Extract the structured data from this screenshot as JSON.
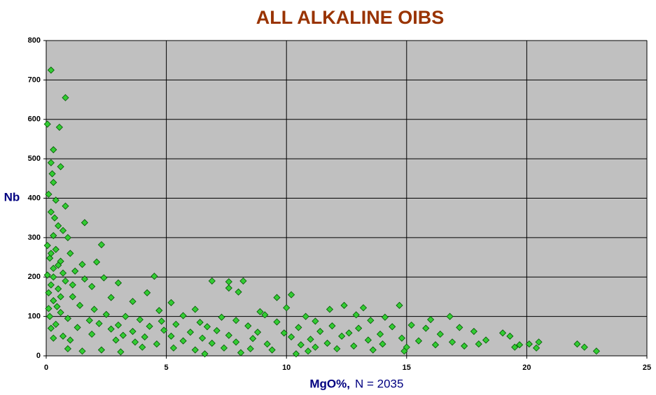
{
  "chart_data": {
    "type": "scatter",
    "title": "ALL ALKALINE OIBS",
    "x_label": "MgO%,",
    "annotation": "N = 2035",
    "y_label": "Nb",
    "color": "#33cc33",
    "grid": true,
    "xlim": [
      0,
      25
    ],
    "xticks": [
      0,
      5,
      10,
      15,
      20,
      25
    ],
    "ylim": [
      0,
      800
    ],
    "yticks": [
      0,
      100,
      200,
      300,
      400,
      500,
      600,
      700,
      800
    ],
    "x": [
      0.2,
      0.8,
      0.05,
      0.55,
      0.3,
      0.2,
      0.6,
      0.25,
      0.3,
      0.1,
      0.4,
      0.8,
      0.2,
      1.6,
      0.5,
      0.7,
      0.3,
      0.9,
      0.05,
      2.3,
      0.4,
      1.0,
      0.15,
      0.6,
      2.1,
      1.5,
      0.3,
      1.2,
      0.05,
      4.5,
      1.6,
      2.4,
      0.8,
      6.9,
      7.6,
      8.2,
      3.0,
      0.2,
      1.9,
      0.5,
      7.6,
      4.2,
      8.0,
      10.2,
      1.1,
      2.7,
      0.3,
      3.6,
      5.2,
      9.6,
      12.4,
      14.7,
      13.2,
      1.4,
      0.1,
      2.0,
      4.7,
      6.2,
      8.9,
      10.0,
      11.8,
      0.6,
      2.5,
      3.3,
      5.7,
      7.3,
      9.1,
      10.8,
      12.9,
      14.1,
      16.8,
      16.0,
      0.9,
      1.8,
      3.9,
      4.8,
      6.4,
      7.9,
      9.6,
      11.2,
      13.5,
      15.2,
      17.2,
      0.4,
      2.2,
      3.0,
      4.3,
      5.4,
      6.7,
      8.4,
      10.5,
      11.9,
      13.0,
      14.4,
      15.8,
      17.8,
      19.0,
      0.2,
      1.3,
      2.7,
      3.6,
      4.9,
      6.0,
      7.1,
      8.8,
      9.9,
      11.4,
      12.6,
      13.9,
      16.4,
      18.3,
      19.3,
      0.7,
      1.9,
      3.2,
      4.1,
      5.2,
      6.5,
      7.6,
      8.6,
      10.2,
      11.0,
      12.3,
      13.4,
      14.8,
      15.5,
      16.9,
      20.1,
      20.5,
      22.1,
      22.4,
      22.9,
      19.5,
      18.0,
      17.4,
      2.9,
      3.7,
      4.6,
      5.7,
      6.9,
      7.9,
      9.2,
      10.6,
      11.7,
      12.8,
      14.0,
      15.0,
      16.2,
      0.3,
      1.0,
      4.0,
      5.3,
      6.2,
      7.4,
      8.5,
      9.4,
      10.9,
      12.1,
      13.6,
      14.9,
      0.9,
      1.5,
      2.3,
      3.1,
      6.6,
      10.4,
      11.2,
      8.1,
      20.4,
      19.7,
      0.1,
      0.3,
      0.5,
      0.2,
      0.6,
      0.15,
      0.45,
      0.7,
      1.1,
      0.35
    ],
    "values": [
      725,
      655,
      588,
      580,
      523,
      490,
      480,
      462,
      440,
      410,
      395,
      380,
      365,
      338,
      330,
      318,
      305,
      300,
      280,
      282,
      270,
      260,
      248,
      240,
      238,
      232,
      222,
      215,
      205,
      202,
      195,
      198,
      190,
      190,
      188,
      190,
      185,
      180,
      176,
      170,
      172,
      160,
      162,
      155,
      150,
      148,
      140,
      138,
      135,
      148,
      128,
      128,
      122,
      128,
      120,
      118,
      115,
      118,
      112,
      122,
      118,
      110,
      105,
      100,
      102,
      98,
      104,
      100,
      104,
      98,
      100,
      92,
      95,
      90,
      92,
      88,
      85,
      90,
      86,
      88,
      90,
      78,
      72,
      80,
      82,
      78,
      75,
      80,
      74,
      76,
      72,
      76,
      70,
      74,
      70,
      62,
      58,
      70,
      72,
      68,
      62,
      65,
      60,
      64,
      60,
      58,
      62,
      58,
      55,
      55,
      40,
      50,
      50,
      55,
      52,
      48,
      50,
      45,
      52,
      44,
      48,
      42,
      50,
      40,
      45,
      38,
      35,
      30,
      35,
      30,
      22,
      12,
      22,
      30,
      25,
      40,
      35,
      30,
      38,
      32,
      35,
      30,
      28,
      32,
      25,
      30,
      22,
      28,
      45,
      40,
      22,
      20,
      15,
      20,
      18,
      15,
      12,
      18,
      15,
      12,
      18,
      12,
      15,
      10,
      5,
      5,
      22,
      8,
      20,
      28,
      160,
      200,
      230,
      260,
      150,
      100,
      125,
      210,
      180,
      350
    ]
  }
}
